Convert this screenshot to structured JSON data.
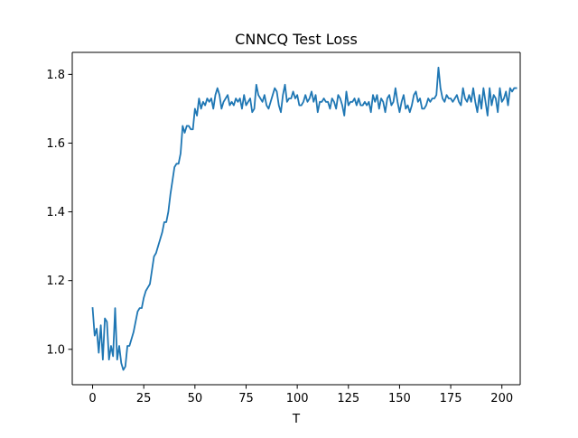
{
  "chart_data": {
    "type": "line",
    "title": "CNNCQ Test Loss",
    "xlabel": "T",
    "ylabel": "",
    "xlim": [
      -9.95,
      208.95
    ],
    "ylim": [
      0.897,
      1.864
    ],
    "xticks": [
      0,
      25,
      50,
      75,
      100,
      125,
      150,
      175,
      200
    ],
    "yticks": [
      1.0,
      1.2,
      1.4,
      1.6,
      1.8
    ],
    "xtick_labels": [
      "0",
      "25",
      "50",
      "75",
      "100",
      "125",
      "150",
      "175",
      "200"
    ],
    "ytick_labels": [
      "1.0",
      "1.2",
      "1.4",
      "1.6",
      "1.8"
    ],
    "grid": false,
    "legend": "none",
    "series": [
      {
        "color": "#1f77b4",
        "x_start": 0,
        "x_step": 1,
        "values": [
          1.12,
          1.04,
          1.06,
          0.99,
          1.07,
          0.97,
          1.09,
          1.08,
          0.97,
          1.01,
          0.98,
          1.12,
          0.97,
          1.01,
          0.96,
          0.94,
          0.95,
          1.01,
          1.01,
          1.03,
          1.05,
          1.08,
          1.11,
          1.12,
          1.12,
          1.15,
          1.17,
          1.18,
          1.19,
          1.23,
          1.27,
          1.28,
          1.3,
          1.32,
          1.34,
          1.37,
          1.37,
          1.4,
          1.45,
          1.49,
          1.53,
          1.54,
          1.54,
          1.57,
          1.65,
          1.63,
          1.65,
          1.65,
          1.64,
          1.64,
          1.7,
          1.68,
          1.73,
          1.7,
          1.72,
          1.71,
          1.73,
          1.72,
          1.73,
          1.7,
          1.74,
          1.76,
          1.74,
          1.7,
          1.72,
          1.73,
          1.74,
          1.71,
          1.72,
          1.71,
          1.73,
          1.72,
          1.73,
          1.7,
          1.74,
          1.71,
          1.72,
          1.73,
          1.69,
          1.7,
          1.77,
          1.74,
          1.73,
          1.72,
          1.74,
          1.71,
          1.7,
          1.72,
          1.74,
          1.76,
          1.75,
          1.71,
          1.69,
          1.74,
          1.77,
          1.72,
          1.73,
          1.73,
          1.75,
          1.73,
          1.74,
          1.71,
          1.71,
          1.72,
          1.74,
          1.72,
          1.73,
          1.75,
          1.72,
          1.74,
          1.69,
          1.72,
          1.72,
          1.73,
          1.72,
          1.72,
          1.7,
          1.73,
          1.72,
          1.7,
          1.74,
          1.73,
          1.71,
          1.68,
          1.75,
          1.71,
          1.72,
          1.72,
          1.73,
          1.71,
          1.73,
          1.71,
          1.71,
          1.72,
          1.71,
          1.72,
          1.69,
          1.74,
          1.72,
          1.74,
          1.7,
          1.73,
          1.72,
          1.69,
          1.73,
          1.74,
          1.71,
          1.72,
          1.76,
          1.72,
          1.69,
          1.72,
          1.74,
          1.7,
          1.71,
          1.69,
          1.71,
          1.74,
          1.75,
          1.72,
          1.73,
          1.7,
          1.7,
          1.71,
          1.73,
          1.72,
          1.73,
          1.73,
          1.74,
          1.82,
          1.76,
          1.73,
          1.72,
          1.74,
          1.73,
          1.73,
          1.72,
          1.73,
          1.74,
          1.72,
          1.71,
          1.76,
          1.73,
          1.72,
          1.74,
          1.72,
          1.76,
          1.72,
          1.69,
          1.74,
          1.7,
          1.76,
          1.72,
          1.68,
          1.76,
          1.71,
          1.74,
          1.73,
          1.69,
          1.76,
          1.72,
          1.73,
          1.75,
          1.71,
          1.76,
          1.75,
          1.76,
          1.76
        ]
      }
    ]
  }
}
